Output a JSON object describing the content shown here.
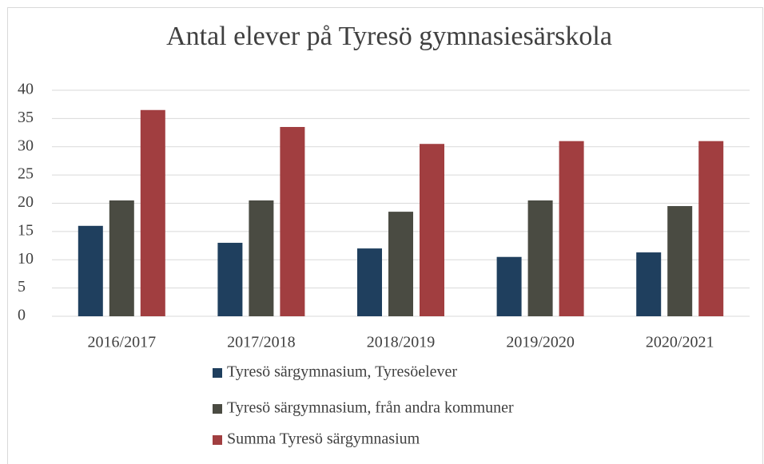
{
  "chart_data": {
    "type": "bar",
    "title": "Antal elever på Tyresö gymnasiesärskola",
    "categories": [
      "2016/2017",
      "2017/2018",
      "2018/2019",
      "2019/2020",
      "2020/2021"
    ],
    "series": [
      {
        "name": "Tyresö särgymnasium, Tyresöelever",
        "color": "#1f3f5e",
        "values": [
          16,
          13,
          12,
          10.5,
          11.3
        ]
      },
      {
        "name": "Tyresö särgymnasium, från andra kommuner",
        "color": "#4a4b42",
        "values": [
          20.5,
          20.5,
          18.5,
          20.5,
          19.5
        ]
      },
      {
        "name": "Summa Tyresö särgymnasium",
        "color": "#a13e40",
        "values": [
          36.5,
          33.5,
          30.5,
          31,
          31
        ]
      }
    ],
    "ylim": [
      0,
      40
    ],
    "yticks": [
      0,
      5,
      10,
      15,
      20,
      25,
      30,
      35,
      40
    ],
    "grid": true,
    "legend": "bottom"
  }
}
